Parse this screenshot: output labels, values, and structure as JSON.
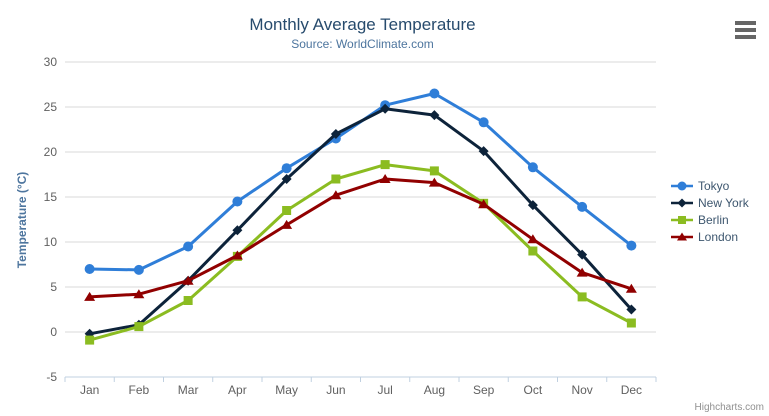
{
  "header": {
    "title": "Monthly Average Temperature",
    "subtitle": "Source: WorldClimate.com"
  },
  "export_menu": {
    "icon": "hamburger-icon"
  },
  "credits": {
    "label": "Highcharts.com"
  },
  "colors": {
    "background": "#ffffff",
    "title": "#274b6d",
    "subtitle": "#4d759e",
    "axis_title": "#4d759e",
    "axis_label": "#606060",
    "grid": "#d8d8d8",
    "axis_line": "#c0d0e0",
    "legend_text": "#3e576f",
    "credits": "#909090",
    "menu_icon": "#666666"
  },
  "chart_data": {
    "type": "line",
    "title": "Monthly Average Temperature",
    "subtitle": "Source: WorldClimate.com",
    "xlabel": "",
    "ylabel": "Temperature (°C)",
    "ylim": [
      -5,
      30
    ],
    "ytick_step": 5,
    "grid": true,
    "legend_position": "right",
    "categories": [
      "Jan",
      "Feb",
      "Mar",
      "Apr",
      "May",
      "Jun",
      "Jul",
      "Aug",
      "Sep",
      "Oct",
      "Nov",
      "Dec"
    ],
    "series": [
      {
        "name": "Tokyo",
        "color": "#2f7ed8",
        "marker": "circle",
        "values": [
          7.0,
          6.9,
          9.5,
          14.5,
          18.2,
          21.5,
          25.2,
          26.5,
          23.3,
          18.3,
          13.9,
          9.6
        ]
      },
      {
        "name": "New York",
        "color": "#0d233a",
        "marker": "diamond",
        "values": [
          -0.2,
          0.8,
          5.7,
          11.3,
          17.0,
          22.0,
          24.8,
          24.1,
          20.1,
          14.1,
          8.6,
          2.5
        ]
      },
      {
        "name": "Berlin",
        "color": "#8bbc21",
        "marker": "square",
        "values": [
          -0.9,
          0.6,
          3.5,
          8.4,
          13.5,
          17.0,
          18.6,
          17.9,
          14.3,
          9.0,
          3.9,
          1.0
        ]
      },
      {
        "name": "London",
        "color": "#910000",
        "marker": "triangle",
        "values": [
          3.9,
          4.2,
          5.7,
          8.5,
          11.9,
          15.2,
          17.0,
          16.6,
          14.2,
          10.3,
          6.6,
          4.8
        ]
      }
    ]
  }
}
